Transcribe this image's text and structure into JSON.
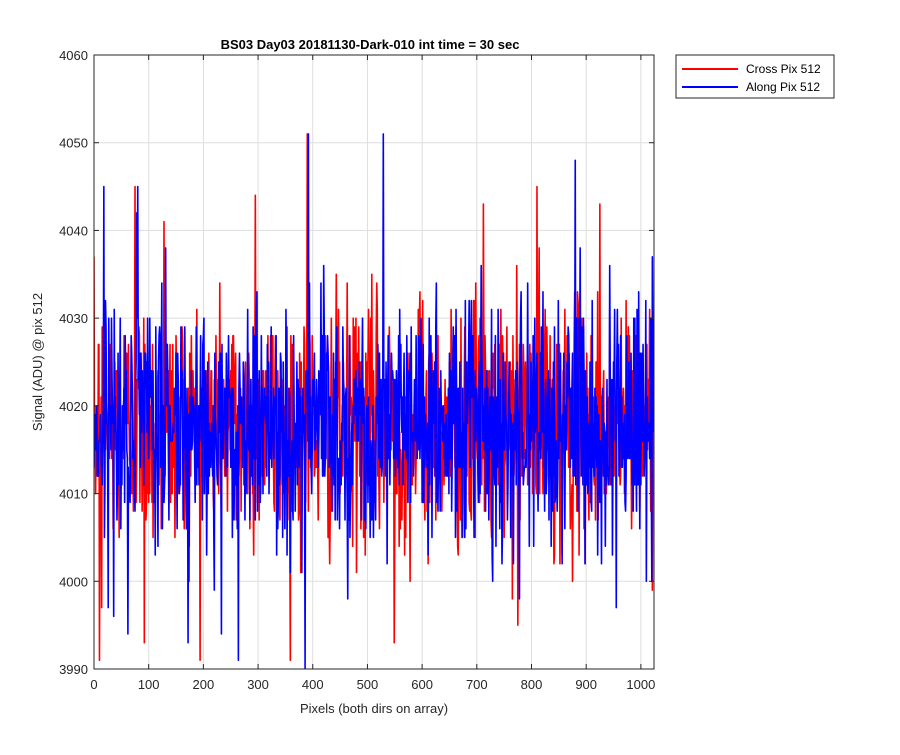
{
  "chart_data": {
    "type": "line",
    "title": "BS03 Day03 20181130-Dark-010 int time = 30 sec",
    "xlabel": "Pixels (both dirs on array)",
    "ylabel": "Signal (ADU) @ pix 512",
    "xlim": [
      0,
      1024
    ],
    "ylim": [
      3990,
      4060
    ],
    "xticks": [
      0,
      100,
      200,
      300,
      400,
      500,
      600,
      700,
      800,
      900,
      1000
    ],
    "yticks": [
      3990,
      4000,
      4010,
      4020,
      4030,
      4040,
      4050,
      4060
    ],
    "grid": true,
    "legend_position": "outside-top-right",
    "series": [
      {
        "name": "Cross Pix 512",
        "color": "#ff0000",
        "mean": 4018,
        "spread": 7,
        "min": 3991,
        "max": 4051,
        "points": 1024,
        "spikes": [
          [
            10,
            3991
          ],
          [
            14,
            3997
          ],
          [
            75,
            4045
          ],
          [
            92,
            3993
          ],
          [
            128,
            4041
          ],
          [
            295,
            4044
          ],
          [
            390,
            4051
          ],
          [
            549,
            3993
          ],
          [
            712,
            4043
          ],
          [
            775,
            3995
          ],
          [
            810,
            4045
          ],
          [
            925,
            4043
          ]
        ]
      },
      {
        "name": "Along Pix 512",
        "color": "#0000ff",
        "mean": 4018,
        "spread": 7,
        "min": 3990,
        "max": 4051,
        "points": 1024,
        "spikes": [
          [
            18,
            4045
          ],
          [
            62,
            3994
          ],
          [
            80,
            4045
          ],
          [
            233,
            3994
          ],
          [
            264,
            3991
          ],
          [
            386,
            3990
          ],
          [
            392,
            4051
          ],
          [
            529,
            4051
          ],
          [
            778,
            3998
          ],
          [
            880,
            4048
          ],
          [
            955,
            3997
          ],
          [
            1010,
            4000
          ],
          [
            1020,
            4000
          ]
        ]
      }
    ]
  }
}
